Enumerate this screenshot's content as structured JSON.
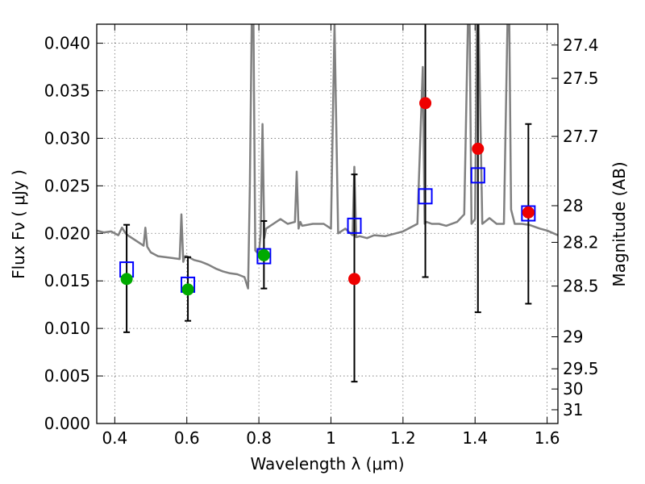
{
  "chart_data": {
    "type": "scatter",
    "xlabel": "Wavelength  λ (μm)",
    "ylabel": "Flux  Fν  ( μJy )",
    "ylabel_right": "Magnitude (AB)",
    "xlim": [
      0.35,
      1.63
    ],
    "ylim": [
      0.0,
      0.042
    ],
    "x_ticks": [
      "0.4",
      "0.6",
      "0.8",
      "1",
      "1.2",
      "1.4",
      "1.6"
    ],
    "x_tick_values": [
      0.4,
      0.6,
      0.8,
      1.0,
      1.2,
      1.4,
      1.6
    ],
    "y_ticks": [
      "0.000",
      "0.005",
      "0.010",
      "0.015",
      "0.020",
      "0.025",
      "0.030",
      "0.035",
      "0.040"
    ],
    "y_tick_values": [
      0.0,
      0.005,
      0.01,
      0.015,
      0.02,
      0.025,
      0.03,
      0.035,
      0.04
    ],
    "right_ticks": [
      "27.4",
      "27.5",
      "27.7",
      "28",
      "28.2",
      "28.5",
      "29",
      "29.5",
      "30",
      "31"
    ],
    "right_tick_values": [
      27.4,
      27.5,
      27.7,
      28.0,
      28.2,
      28.5,
      29.0,
      29.5,
      30.0,
      31.0
    ],
    "grid": true,
    "colors": {
      "model": "#808080",
      "template": "#0000ff",
      "optical": "#00aa00",
      "nir": "#ee0000",
      "errorbar": "#000000"
    },
    "series": [
      {
        "kind": "model_spectrum",
        "x": [
          0.35,
          0.37,
          0.39,
          0.41,
          0.42,
          0.43,
          0.44,
          0.46,
          0.48,
          0.485,
          0.49,
          0.5,
          0.52,
          0.54,
          0.56,
          0.58,
          0.585,
          0.59,
          0.595,
          0.6,
          0.62,
          0.64,
          0.66,
          0.68,
          0.7,
          0.72,
          0.74,
          0.76,
          0.77,
          0.775,
          0.78,
          0.785,
          0.79,
          0.8,
          0.805,
          0.81,
          0.815,
          0.82,
          0.84,
          0.86,
          0.88,
          0.9,
          0.905,
          0.91,
          0.915,
          0.92,
          0.95,
          0.98,
          1.0,
          1.01,
          1.02,
          1.04,
          1.06,
          1.065,
          1.07,
          1.08,
          1.1,
          1.12,
          1.15,
          1.18,
          1.2,
          1.24,
          1.255,
          1.26,
          1.265,
          1.28,
          1.3,
          1.32,
          1.35,
          1.37,
          1.38,
          1.385,
          1.39,
          1.4,
          1.405,
          1.41,
          1.42,
          1.44,
          1.46,
          1.48,
          1.49,
          1.495,
          1.5,
          1.51,
          1.53,
          1.55,
          1.58,
          1.6,
          1.63
        ],
        "y": [
          0.0203,
          0.0201,
          0.0202,
          0.0198,
          0.0206,
          0.02,
          0.0197,
          0.0192,
          0.0187,
          0.0206,
          0.0186,
          0.018,
          0.0176,
          0.0175,
          0.0174,
          0.0173,
          0.022,
          0.017,
          0.0176,
          0.0176,
          0.0172,
          0.017,
          0.0167,
          0.0163,
          0.016,
          0.0158,
          0.0157,
          0.0154,
          0.0142,
          0.025,
          0.042,
          0.042,
          0.0182,
          0.0178,
          0.02,
          0.0315,
          0.0195,
          0.0205,
          0.021,
          0.0215,
          0.021,
          0.0212,
          0.0265,
          0.0205,
          0.0212,
          0.0208,
          0.021,
          0.021,
          0.0205,
          0.042,
          0.02,
          0.0205,
          0.0198,
          0.027,
          0.0196,
          0.0197,
          0.0195,
          0.0198,
          0.0197,
          0.02,
          0.0202,
          0.021,
          0.0375,
          0.021,
          0.0212,
          0.021,
          0.021,
          0.0208,
          0.0212,
          0.022,
          0.042,
          0.042,
          0.021,
          0.0215,
          0.042,
          0.042,
          0.021,
          0.0216,
          0.021,
          0.021,
          0.042,
          0.042,
          0.0225,
          0.021,
          0.021,
          0.0209,
          0.0205,
          0.0203,
          0.0198
        ]
      },
      {
        "kind": "template_squares",
        "x": [
          0.433,
          0.603,
          0.814,
          1.065,
          1.262,
          1.408,
          1.548
        ],
        "y": [
          0.0162,
          0.0146,
          0.0176,
          0.0208,
          0.0239,
          0.0261,
          0.0221
        ]
      },
      {
        "kind": "optical_detections",
        "x": [
          0.433,
          0.603,
          0.814
        ],
        "y": [
          0.0152,
          0.0141,
          0.0177
        ],
        "err_low": [
          0.0096,
          0.0108,
          0.0142
        ],
        "err_high": [
          0.0209,
          0.0175,
          0.0213
        ]
      },
      {
        "kind": "nir_detections",
        "x": [
          1.065,
          1.262,
          1.408,
          1.548
        ],
        "y": [
          0.0152,
          0.0337,
          0.0289,
          0.0222
        ],
        "err_low": [
          0.0044,
          0.0154,
          0.0117,
          0.0126
        ],
        "err_high": [
          0.0262,
          0.042,
          0.042,
          0.0315
        ]
      }
    ]
  }
}
